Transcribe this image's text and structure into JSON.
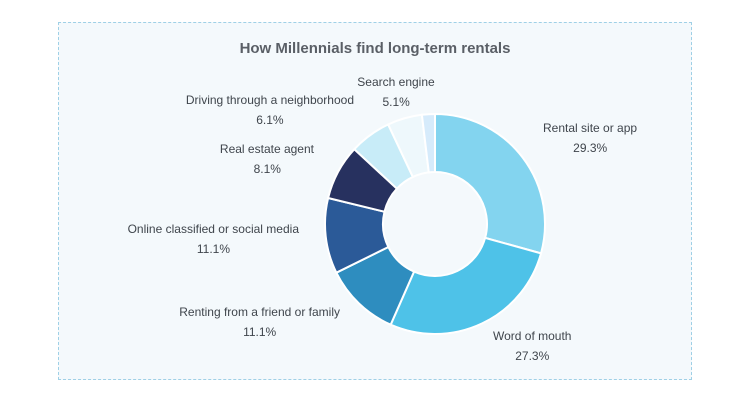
{
  "chart_data": {
    "type": "pie",
    "title": "How Millennials find long-term rentals",
    "slices": [
      {
        "label": "Rental site or app",
        "value": 29.3,
        "value_label": "29.3%",
        "color": "#83d4ef"
      },
      {
        "label": "Word of mouth",
        "value": 27.3,
        "value_label": "27.3%",
        "color": "#4ec2e8"
      },
      {
        "label": "Renting from a friend or family",
        "value": 11.1,
        "value_label": "11.1%",
        "color": "#2e8dbf"
      },
      {
        "label": "Online classified or social media",
        "value": 11.1,
        "value_label": "11.1%",
        "color": "#2b5a98"
      },
      {
        "label": "Real estate agent",
        "value": 8.1,
        "value_label": "8.1%",
        "color": "#27315f"
      },
      {
        "label": "Driving through a neighborhood",
        "value": 6.1,
        "value_label": "6.1%",
        "color": "#c8ecf8"
      },
      {
        "label": "Search engine",
        "value": 5.1,
        "value_label": "5.1%",
        "color": "#eef8fc"
      },
      {
        "label": "",
        "value": 1.9,
        "value_label": "",
        "color": "#d6ebfb"
      }
    ]
  }
}
